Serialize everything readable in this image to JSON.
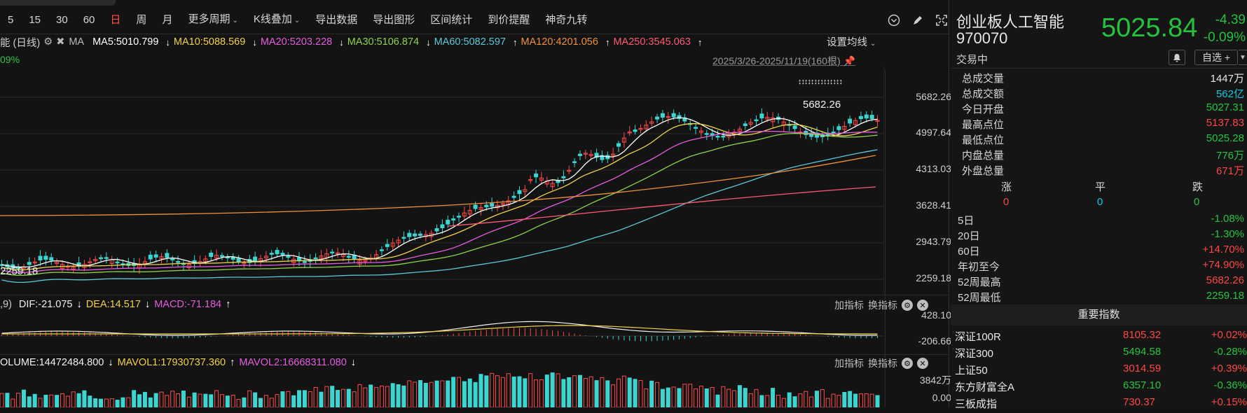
{
  "toolbar": {
    "periods": [
      "5",
      "15",
      "30",
      "60",
      "日",
      "周",
      "月"
    ],
    "more_periods": "更多周期",
    "kline_overlay": "K线叠加",
    "export_data": "导出数据",
    "export_chart": "导出图形",
    "range_stats": "区间统计",
    "price_alert": "到价提醒",
    "magic_nine": "神奇九转"
  },
  "main_chart": {
    "legend_label": "能 (日线)",
    "ma_label": "MA",
    "ma": [
      {
        "text": "MA5:5010.799",
        "arrow": "↓",
        "color": "#ffffff"
      },
      {
        "text": "MA10:5088.569",
        "arrow": "↓",
        "color": "#f0d24a"
      },
      {
        "text": "MA20:5203.228",
        "arrow": "↓",
        "color": "#e55ce0"
      },
      {
        "text": "MA30:5106.874",
        "arrow": "↓",
        "color": "#8fd24c"
      },
      {
        "text": "MA60:5082.597",
        "arrow": "↑",
        "color": "#5ec8d8"
      },
      {
        "text": "MA120:4201.056",
        "arrow": "↑",
        "color": "#f0913a"
      },
      {
        "text": "MA250:3545.063",
        "arrow": "↑",
        "color": "#ff5a73"
      }
    ],
    "set_ma": "设置均线",
    "pct_label": "09%",
    "date_range": "2025/3/26-2025/11/19(160根)",
    "price_ticks": [
      "5682.26",
      "4997.64",
      "4313.03",
      "3628.41",
      "2943.79",
      "2259.18"
    ],
    "high_marker": "5682.26",
    "low_marker": "2259.18",
    "signal_marks": "↕↕↕↕↕↕↕↕↕↕↕↕↕↕"
  },
  "macd": {
    "prefix": ",9)",
    "dif": "DIF:-21.075",
    "dif_arrow": "↓",
    "dea": "DEA:14.517",
    "dea_arrow": "↓",
    "macd": "MACD:-71.184",
    "macd_arrow": "↑",
    "ticks": [
      "428.10",
      "-206.66"
    ],
    "add_indicator": "加指标",
    "switch_indicator": "换指标"
  },
  "volume": {
    "volume": "OLUME:14472484.800",
    "volume_arrow": "↓",
    "mavol1": "MAVOL1:17930737.360",
    "mavol1_arrow": "↑",
    "mavol2": "MAVOL2:16668311.080",
    "mavol2_arrow": "↓",
    "ticks": [
      "3842万",
      "0.00"
    ],
    "add_indicator": "加指标",
    "switch_indicator": "换指标"
  },
  "panel": {
    "name": "创业板人工智能",
    "code": "970070",
    "price": "5025.84",
    "change": "-4.39",
    "change_pct": "-0.09%",
    "status": "交易中",
    "watchlist_btn": "自选 +",
    "stats": [
      {
        "label": "总成交量",
        "value": "1447万",
        "color": "white"
      },
      {
        "label": "总成交额",
        "value": "562亿",
        "color": "cyan"
      },
      {
        "label": "今日开盘",
        "value": "5027.31",
        "color": "green"
      },
      {
        "label": "最高点位",
        "value": "5137.83",
        "color": "red"
      },
      {
        "label": "最低点位",
        "value": "5025.28",
        "color": "green"
      },
      {
        "label": "内盘总量",
        "value": "776万",
        "color": "green"
      },
      {
        "label": "外盘总量",
        "value": "671万",
        "color": "red"
      }
    ],
    "breadth_headers": [
      "涨",
      "平",
      "跌"
    ],
    "breadth_values": [
      "0",
      "0",
      "0"
    ],
    "perf": [
      {
        "label": "5日",
        "value": "-1.08%",
        "color": "green"
      },
      {
        "label": "20日",
        "value": "-1.30%",
        "color": "green"
      },
      {
        "label": "60日",
        "value": "+14.70%",
        "color": "red"
      },
      {
        "label": "年初至今",
        "value": "+74.90%",
        "color": "red"
      },
      {
        "label": "52周最高",
        "value": "5682.26",
        "color": "red"
      },
      {
        "label": "52周最低",
        "value": "2259.18",
        "color": "green"
      }
    ],
    "section_title": "重要指数",
    "indices": [
      {
        "name": "深证100R",
        "price": "8105.32",
        "pct": "+0.02%",
        "color": "red"
      },
      {
        "name": "深证300",
        "price": "5494.58",
        "pct": "-0.28%",
        "color": "green"
      },
      {
        "name": "上证50",
        "price": "3014.59",
        "pct": "+0.39%",
        "color": "red"
      },
      {
        "name": "东方财富全A",
        "price": "6357.10",
        "pct": "-0.36%",
        "color": "green"
      },
      {
        "name": "三板成指",
        "price": "730.37",
        "pct": "+0.15%",
        "color": "red"
      }
    ]
  }
}
